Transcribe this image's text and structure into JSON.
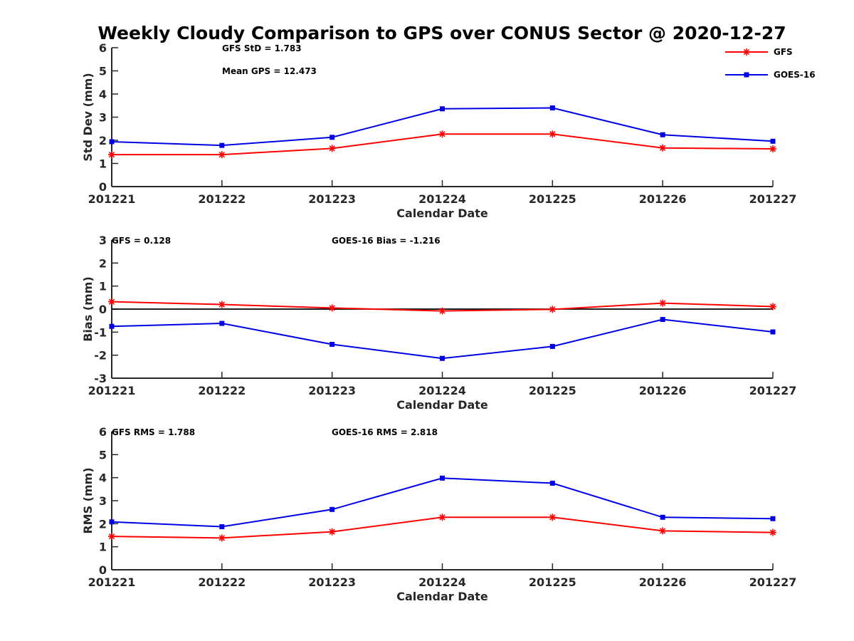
{
  "title": "Weekly Cloudy Comparison to GPS over CONUS Sector @ 2020-12-27",
  "colors": {
    "GFS": "#ff0000",
    "GOES-16": "#0000e6",
    "axis": "#262626",
    "zero_line": "#000000"
  },
  "legend": {
    "placement": "top-right",
    "entries": [
      "GFS",
      "GOES-16"
    ]
  },
  "chart_data": [
    {
      "type": "line",
      "categories": [
        "201221",
        "201222",
        "201223",
        "201224",
        "201225",
        "201226",
        "201227"
      ],
      "series": [
        {
          "name": "GFS",
          "marker": "asterisk",
          "values": [
            1.38,
            1.38,
            1.65,
            2.27,
            2.27,
            1.67,
            1.63
          ]
        },
        {
          "name": "GOES-16",
          "marker": "square",
          "values": [
            1.94,
            1.78,
            2.13,
            3.36,
            3.4,
            2.24,
            1.96
          ]
        }
      ],
      "xlabel": "Calendar Date",
      "ylabel": "Std Dev (mm)",
      "ylim": [
        0,
        6
      ],
      "yticks": [
        "0",
        "1",
        "2",
        "3",
        "4",
        "5",
        "6"
      ],
      "annotations": [
        "GFS StD = 1.783",
        "Mean GPS = 12.473"
      ]
    },
    {
      "type": "line",
      "categories": [
        "201221",
        "201222",
        "201223",
        "201224",
        "201225",
        "201226",
        "201227"
      ],
      "series": [
        {
          "name": "GFS",
          "marker": "asterisk",
          "values": [
            0.32,
            0.2,
            0.05,
            -0.08,
            -0.01,
            0.26,
            0.11
          ]
        },
        {
          "name": "GOES-16",
          "marker": "square",
          "values": [
            -0.75,
            -0.62,
            -1.53,
            -2.14,
            -1.62,
            -0.45,
            -0.99
          ]
        }
      ],
      "xlabel": "Calendar Date",
      "ylabel": "Bias (mm)",
      "ylim": [
        -3,
        3
      ],
      "yticks": [
        "-3",
        "-2",
        "-1",
        "0",
        "1",
        "2",
        "3"
      ],
      "annotations": [
        "GFS = 0.128",
        "GOES-16 Bias  = -1.216"
      ]
    },
    {
      "type": "line",
      "categories": [
        "201221",
        "201222",
        "201223",
        "201224",
        "201225",
        "201226",
        "201227"
      ],
      "series": [
        {
          "name": "GFS",
          "marker": "asterisk",
          "values": [
            1.45,
            1.38,
            1.65,
            2.28,
            2.28,
            1.69,
            1.62
          ]
        },
        {
          "name": "GOES-16",
          "marker": "square",
          "values": [
            2.08,
            1.87,
            2.62,
            3.98,
            3.76,
            2.28,
            2.22
          ]
        }
      ],
      "xlabel": "Calendar Date",
      "ylabel": "RMS (mm)",
      "ylim": [
        0,
        6
      ],
      "yticks": [
        "0",
        "1",
        "2",
        "3",
        "4",
        "5",
        "6"
      ],
      "annotations": [
        "GFS RMS = 1.788",
        "GOES-16 RMS = 2.818"
      ]
    }
  ]
}
